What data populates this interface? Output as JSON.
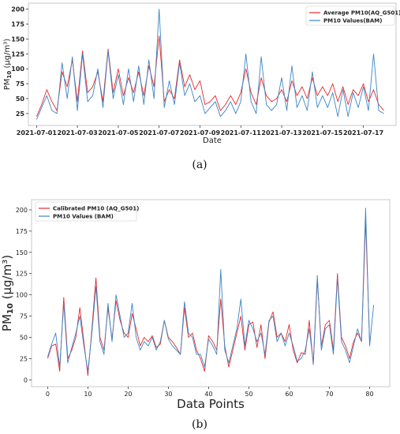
{
  "colors": {
    "red": "#e8282a",
    "blue": "#3a86c6",
    "axis": "#222222",
    "frame": "#bbbbbb"
  },
  "chart_data": [
    {
      "type": "line",
      "panel_label": "(a)",
      "xlabel": "Date",
      "ylabel": "PM10 (μg/m³)",
      "ylabel_main": "PM",
      "ylabel_sub": "10",
      "ylabel_unit": " (μg/m³)",
      "xlim": [
        -0.4,
        17.6
      ],
      "ylim": [
        5,
        210
      ],
      "yticks": [
        25,
        50,
        75,
        100,
        125,
        150,
        175,
        200
      ],
      "xticks": [
        {
          "x": 0,
          "label": "2021-07-01"
        },
        {
          "x": 2,
          "label": "2021-07-03"
        },
        {
          "x": 4,
          "label": "2021-07-05"
        },
        {
          "x": 6,
          "label": "2021-07-07"
        },
        {
          "x": 8,
          "label": "2021-07-09"
        },
        {
          "x": 10,
          "label": "2021-07-11"
        },
        {
          "x": 12,
          "label": "2021-07-13"
        },
        {
          "x": 14,
          "label": "2021-07-15"
        },
        {
          "x": 16,
          "label": "2021-07-17"
        }
      ],
      "legend": "top-right",
      "series": [
        {
          "name": "Average PM10(AQ_G501)",
          "color": "#e8282a",
          "x": [
            0,
            0.25,
            0.5,
            0.75,
            1,
            1.25,
            1.5,
            1.75,
            2,
            2.25,
            2.5,
            2.75,
            3,
            3.25,
            3.5,
            3.75,
            4,
            4.25,
            4.5,
            4.75,
            5,
            5.25,
            5.5,
            5.75,
            6,
            6.25,
            6.5,
            6.75,
            7,
            7.25,
            7.5,
            7.75,
            8,
            8.25,
            8.5,
            8.75,
            9,
            9.25,
            9.5,
            9.75,
            10,
            10.25,
            10.5,
            10.75,
            11,
            11.25,
            11.5,
            11.75,
            12,
            12.25,
            12.5,
            12.75,
            13,
            13.25,
            13.5,
            13.75,
            14,
            14.25,
            14.5,
            14.75,
            15,
            15.25,
            15.5,
            15.75,
            16,
            16.25,
            16.5,
            16.75,
            17
          ],
          "y": [
            20,
            40,
            65,
            45,
            30,
            95,
            70,
            115,
            45,
            130,
            60,
            70,
            95,
            45,
            133,
            60,
            100,
            55,
            85,
            60,
            95,
            55,
            105,
            70,
            155,
            45,
            65,
            50,
            115,
            70,
            90,
            65,
            80,
            40,
            45,
            55,
            30,
            40,
            55,
            40,
            60,
            100,
            60,
            40,
            85,
            55,
            45,
            50,
            65,
            45,
            80,
            55,
            70,
            50,
            85,
            55,
            70,
            55,
            75,
            45,
            70,
            40,
            65,
            55,
            75,
            45,
            65,
            40,
            30
          ]
        },
        {
          "name": "PM10 Values(BAM)",
          "color": "#3a86c6",
          "x": [
            0,
            0.25,
            0.5,
            0.75,
            1,
            1.25,
            1.5,
            1.75,
            2,
            2.25,
            2.5,
            2.75,
            3,
            3.25,
            3.5,
            3.75,
            4,
            4.25,
            4.5,
            4.75,
            5,
            5.25,
            5.5,
            5.75,
            6,
            6.25,
            6.5,
            6.75,
            7,
            7.25,
            7.5,
            7.75,
            8,
            8.25,
            8.5,
            8.75,
            9,
            9.25,
            9.5,
            9.75,
            10,
            10.25,
            10.5,
            10.75,
            11,
            11.25,
            11.5,
            11.75,
            12,
            12.25,
            12.5,
            12.75,
            13,
            13.25,
            13.5,
            13.75,
            14,
            14.25,
            14.5,
            14.75,
            15,
            15.25,
            15.5,
            15.75,
            16,
            16.25,
            16.5,
            16.75,
            17
          ],
          "y": [
            15,
            35,
            55,
            30,
            25,
            110,
            50,
            120,
            30,
            125,
            45,
            55,
            100,
            35,
            130,
            50,
            90,
            40,
            100,
            45,
            105,
            40,
            115,
            50,
            200,
            35,
            80,
            40,
            110,
            55,
            75,
            45,
            55,
            25,
            35,
            45,
            20,
            30,
            45,
            25,
            45,
            125,
            45,
            25,
            120,
            40,
            30,
            40,
            85,
            30,
            105,
            35,
            55,
            30,
            95,
            35,
            55,
            35,
            60,
            20,
            65,
            20,
            60,
            35,
            70,
            30,
            125,
            30,
            25
          ]
        }
      ]
    },
    {
      "type": "line",
      "panel_label": "(b)",
      "xlabel": "Data Points",
      "ylabel_main": "PM",
      "ylabel_sub": "10",
      "ylabel_unit": " (μg/m³)",
      "xlim": [
        -4,
        85
      ],
      "ylim": [
        -8,
        212
      ],
      "yticks": [
        0,
        25,
        50,
        75,
        100,
        125,
        150,
        175,
        200
      ],
      "xticks": [
        {
          "x": 0,
          "label": "0"
        },
        {
          "x": 10,
          "label": "10"
        },
        {
          "x": 20,
          "label": "20"
        },
        {
          "x": 30,
          "label": "30"
        },
        {
          "x": 40,
          "label": "40"
        },
        {
          "x": 50,
          "label": "50"
        },
        {
          "x": 60,
          "label": "60"
        },
        {
          "x": 70,
          "label": "70"
        },
        {
          "x": 80,
          "label": "80"
        }
      ],
      "legend": "top-left",
      "series": [
        {
          "name": "Calibrated PM10 (AQ_G501)",
          "color": "#e8282a",
          "x": [
            0,
            1,
            2,
            3,
            4,
            5,
            6,
            7,
            8,
            9,
            10,
            11,
            12,
            13,
            14,
            15,
            16,
            17,
            18,
            19,
            20,
            21,
            22,
            23,
            24,
            25,
            26,
            27,
            28,
            29,
            30,
            31,
            32,
            33,
            34,
            35,
            36,
            37,
            38,
            39,
            40,
            41,
            42,
            43,
            44,
            45,
            46,
            47,
            48,
            49,
            50,
            51,
            52,
            53,
            54,
            55,
            56,
            57,
            58,
            59,
            60,
            61,
            62,
            63,
            64,
            65,
            66,
            67,
            68,
            69,
            70,
            71,
            72,
            73,
            74,
            75,
            76,
            77,
            78,
            79,
            80
          ],
          "y": [
            25,
            40,
            42,
            10,
            97,
            25,
            35,
            50,
            85,
            45,
            5,
            60,
            120,
            50,
            35,
            85,
            48,
            93,
            70,
            55,
            50,
            78,
            60,
            40,
            50,
            45,
            52,
            38,
            42,
            70,
            50,
            45,
            38,
            30,
            85,
            50,
            55,
            35,
            25,
            10,
            52,
            45,
            35,
            95,
            40,
            15,
            35,
            55,
            75,
            35,
            65,
            68,
            38,
            65,
            25,
            68,
            80,
            50,
            55,
            45,
            65,
            35,
            20,
            32,
            30,
            70,
            18,
            118,
            40,
            65,
            70,
            35,
            125,
            50,
            40,
            25,
            45,
            55,
            45,
            188,
            45
          ]
        },
        {
          "name": "PM10 Values (BAM)",
          "color": "#3a86c6",
          "x": [
            0,
            1,
            2,
            3,
            4,
            5,
            6,
            7,
            8,
            9,
            10,
            11,
            12,
            13,
            14,
            15,
            16,
            17,
            18,
            19,
            20,
            21,
            22,
            23,
            24,
            25,
            26,
            27,
            28,
            29,
            30,
            31,
            32,
            33,
            34,
            35,
            36,
            37,
            38,
            39,
            40,
            41,
            42,
            43,
            44,
            45,
            46,
            47,
            48,
            49,
            50,
            51,
            52,
            53,
            54,
            55,
            56,
            57,
            58,
            59,
            60,
            61,
            62,
            63,
            64,
            65,
            66,
            67,
            68,
            69,
            70,
            71,
            72,
            73,
            74,
            75,
            76,
            77,
            78,
            79,
            80,
            81
          ],
          "y": [
            27,
            42,
            55,
            15,
            90,
            20,
            38,
            55,
            75,
            40,
            10,
            55,
            110,
            45,
            30,
            90,
            45,
            100,
            75,
            50,
            55,
            90,
            50,
            35,
            45,
            40,
            50,
            35,
            45,
            70,
            48,
            40,
            35,
            30,
            92,
            55,
            50,
            30,
            30,
            15,
            48,
            40,
            30,
            130,
            35,
            20,
            40,
            60,
            95,
            40,
            70,
            60,
            45,
            55,
            30,
            70,
            75,
            45,
            55,
            40,
            55,
            40,
            22,
            25,
            35,
            60,
            20,
            123,
            35,
            60,
            65,
            30,
            120,
            45,
            35,
            20,
            40,
            60,
            45,
            202,
            40,
            88
          ]
        }
      ]
    }
  ]
}
